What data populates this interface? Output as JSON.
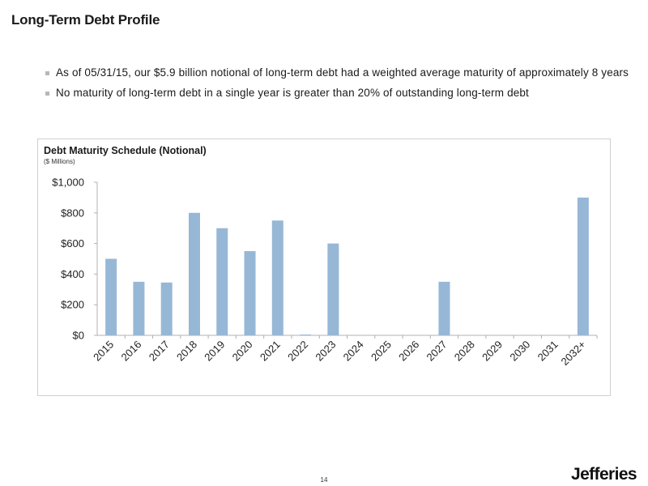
{
  "slide": {
    "title": "Long-Term Debt Profile",
    "bullets": [
      "As of 05/31/15, our $5.9 billion notional of long-term debt had a weighted average maturity of approximately 8 years",
      "No maturity of long-term debt in a single year is greater than 20% of outstanding long-term debt"
    ],
    "page_number": "14",
    "brand": "Jefferies"
  },
  "chart_data": {
    "type": "bar",
    "title": "Debt Maturity Schedule (Notional)",
    "subtitle": "($ Millions)",
    "categories": [
      "2015",
      "2016",
      "2017",
      "2018",
      "2019",
      "2020",
      "2021",
      "2022",
      "2023",
      "2024",
      "2025",
      "2026",
      "2027",
      "2028",
      "2029",
      "2030",
      "2031",
      "2032+"
    ],
    "values": [
      500,
      350,
      345,
      800,
      700,
      550,
      750,
      5,
      600,
      0,
      0,
      0,
      350,
      0,
      0,
      0,
      0,
      900
    ],
    "ylim": [
      0,
      1000
    ],
    "yticks": [
      0,
      200,
      400,
      600,
      800,
      1000
    ],
    "ytick_labels": [
      "$0",
      "$200",
      "$400",
      "$600",
      "$800",
      "$1,000"
    ],
    "bar_color": "#97b7d6",
    "axis_color": "#b0b0b0",
    "grid": false,
    "legend": "none"
  }
}
